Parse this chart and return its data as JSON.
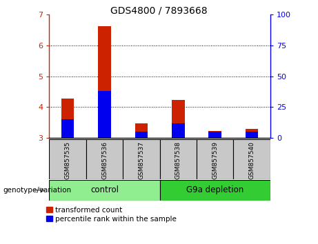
{
  "title": "GDS4800 / 7893668",
  "samples": [
    "GSM857535",
    "GSM857536",
    "GSM857537",
    "GSM857538",
    "GSM857539",
    "GSM857540"
  ],
  "groups": [
    {
      "label": "control",
      "indices": [
        0,
        1,
        2
      ],
      "color": "#90EE90"
    },
    {
      "label": "G9a depletion",
      "indices": [
        3,
        4,
        5
      ],
      "color": "#33CC33"
    }
  ],
  "transformed_count": [
    4.28,
    6.62,
    3.47,
    4.22,
    3.22,
    3.28
  ],
  "percentile_rank_value": [
    15,
    38,
    5,
    12,
    5,
    5
  ],
  "ylim_left": [
    3,
    7
  ],
  "ylim_right": [
    0,
    100
  ],
  "yticks_left": [
    3,
    4,
    5,
    6,
    7
  ],
  "yticks_right": [
    0,
    25,
    50,
    75,
    100
  ],
  "bar_bottom": 3.0,
  "bar_width": 0.35,
  "red_color": "#CC2200",
  "blue_color": "#0000EE",
  "legend_labels": [
    "transformed count",
    "percentile rank within the sample"
  ],
  "genotype_label": "genotype/variation"
}
